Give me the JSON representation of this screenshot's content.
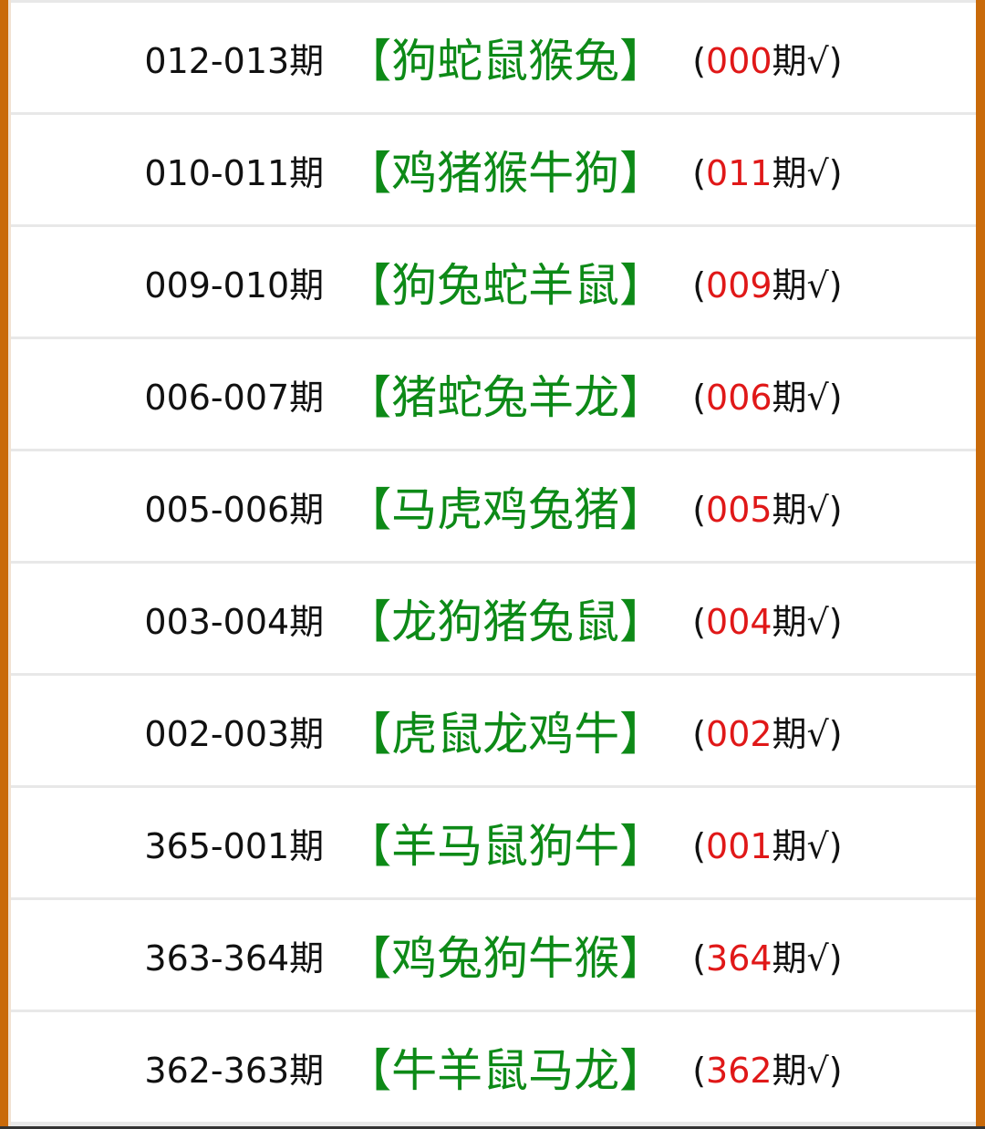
{
  "colors": {
    "border": "#c96a0a",
    "zodiac": "#0d8a17",
    "hit_number": "#e01818"
  },
  "rows": [
    {
      "period": "012-013期",
      "zodiac": "【狗蛇鼠猴兔】",
      "open": "(",
      "hit": "000",
      "suffix": "期√)"
    },
    {
      "period": "010-011期",
      "zodiac": "【鸡猪猴牛狗】",
      "open": "(",
      "hit": "011",
      "suffix": "期√)"
    },
    {
      "period": "009-010期",
      "zodiac": "【狗兔蛇羊鼠】",
      "open": "(",
      "hit": "009",
      "suffix": "期√)"
    },
    {
      "period": "006-007期",
      "zodiac": "【猪蛇兔羊龙】",
      "open": "(",
      "hit": "006",
      "suffix": "期√)"
    },
    {
      "period": "005-006期",
      "zodiac": "【马虎鸡兔猪】",
      "open": "(",
      "hit": "005",
      "suffix": "期√)"
    },
    {
      "period": "003-004期",
      "zodiac": "【龙狗猪兔鼠】",
      "open": "(",
      "hit": "004",
      "suffix": "期√)"
    },
    {
      "period": "002-003期",
      "zodiac": "【虎鼠龙鸡牛】",
      "open": "(",
      "hit": "002",
      "suffix": "期√)"
    },
    {
      "period": "365-001期",
      "zodiac": "【羊马鼠狗牛】",
      "open": "(",
      "hit": "001",
      "suffix": "期√)"
    },
    {
      "period": "363-364期",
      "zodiac": "【鸡兔狗牛猴】",
      "open": "(",
      "hit": "364",
      "suffix": "期√)"
    },
    {
      "period": "362-363期",
      "zodiac": "【牛羊鼠马龙】",
      "open": "(",
      "hit": "362",
      "suffix": "期√)"
    }
  ]
}
